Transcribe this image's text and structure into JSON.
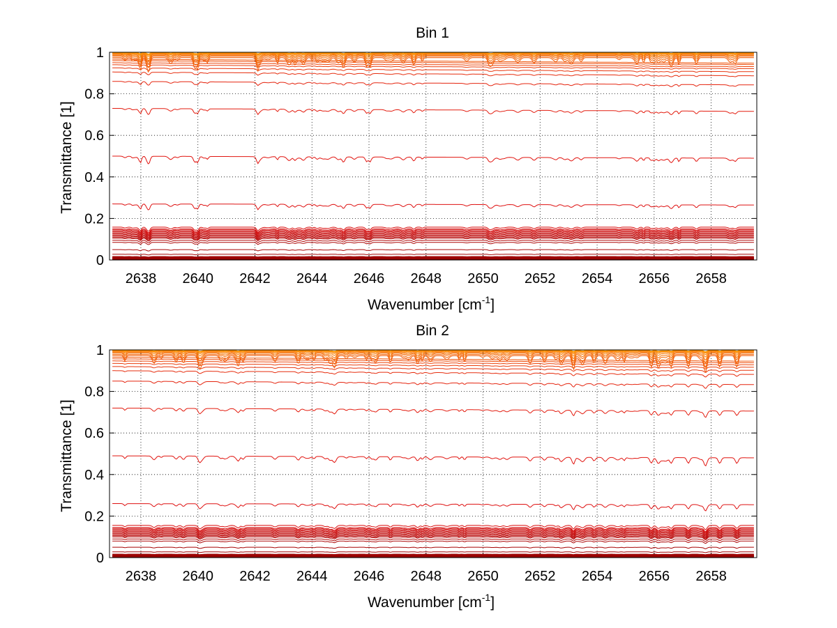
{
  "chart_data": [
    {
      "type": "line",
      "title": "Bin 1",
      "xlabel_main": "Wavenumber [cm",
      "xlabel_sup": "-1",
      "xlabel_close": "]",
      "ylabel": "Transmittance [1]",
      "xlim": [
        2636.9,
        2659.6
      ],
      "ylim": [
        0,
        1
      ],
      "xticks": [
        "2638",
        "2640",
        "2642",
        "2644",
        "2646",
        "2648",
        "2650",
        "2652",
        "2654",
        "2656",
        "2658"
      ],
      "yticks": [
        "0",
        "0.2",
        "0.4",
        "0.6",
        "0.8",
        "1"
      ],
      "grid": true,
      "series_baselines": [
        0.002,
        0.004,
        0.006,
        0.008,
        0.01,
        0.015,
        0.028,
        0.05,
        0.085,
        0.095,
        0.105,
        0.11,
        0.115,
        0.12,
        0.125,
        0.13,
        0.135,
        0.14,
        0.145,
        0.15,
        0.158,
        0.27,
        0.5,
        0.73,
        0.86,
        0.905,
        0.925,
        0.94,
        0.95,
        0.96,
        0.967,
        0.974,
        0.98,
        0.985,
        0.989,
        0.992,
        0.995,
        0.997,
        0.998,
        0.999
      ],
      "line_color_start": "#8b0000",
      "line_color_mid": "#e01010",
      "line_color_end": "#ff9a00"
    },
    {
      "type": "line",
      "title": "Bin 2",
      "xlabel_main": "Wavenumber [cm",
      "xlabel_sup": "-1",
      "xlabel_close": "]",
      "ylabel": "Transmittance [1]",
      "xlim": [
        2636.9,
        2659.6
      ],
      "ylim": [
        0,
        1
      ],
      "xticks": [
        "2638",
        "2640",
        "2642",
        "2644",
        "2646",
        "2648",
        "2650",
        "2652",
        "2654",
        "2656",
        "2658"
      ],
      "yticks": [
        "0",
        "0.2",
        "0.4",
        "0.6",
        "0.8",
        "1"
      ],
      "grid": true,
      "series_baselines": [
        0.002,
        0.004,
        0.006,
        0.008,
        0.01,
        0.015,
        0.028,
        0.05,
        0.08,
        0.09,
        0.1,
        0.105,
        0.11,
        0.115,
        0.12,
        0.125,
        0.13,
        0.135,
        0.14,
        0.145,
        0.155,
        0.26,
        0.49,
        0.72,
        0.85,
        0.9,
        0.92,
        0.935,
        0.947,
        0.957,
        0.965,
        0.972,
        0.978,
        0.984,
        0.988,
        0.992,
        0.995,
        0.997,
        0.998,
        0.999
      ],
      "line_color_start": "#8b0000",
      "line_color_mid": "#e01010",
      "line_color_end": "#ff9a00"
    }
  ]
}
